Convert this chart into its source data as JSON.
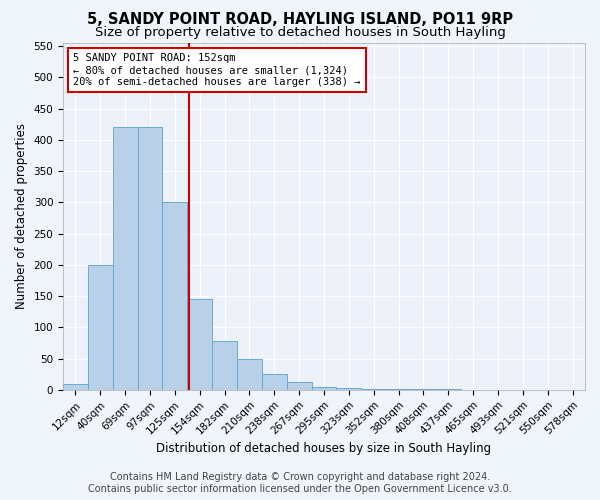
{
  "title": "5, SANDY POINT ROAD, HAYLING ISLAND, PO11 9RP",
  "subtitle": "Size of property relative to detached houses in South Hayling",
  "xlabel": "Distribution of detached houses by size in South Hayling",
  "ylabel": "Number of detached properties",
  "bin_labels": [
    "12sqm",
    "40sqm",
    "69sqm",
    "97sqm",
    "125sqm",
    "154sqm",
    "182sqm",
    "210sqm",
    "238sqm",
    "267sqm",
    "295sqm",
    "323sqm",
    "352sqm",
    "380sqm",
    "408sqm",
    "437sqm",
    "465sqm",
    "493sqm",
    "521sqm",
    "550sqm",
    "578sqm"
  ],
  "bin_values": [
    10,
    200,
    420,
    420,
    300,
    145,
    78,
    50,
    25,
    13,
    5,
    3,
    2,
    1,
    1,
    1,
    0,
    0,
    0,
    0,
    0
  ],
  "bar_color": "#b8d0e8",
  "bar_edge_color": "#6aaad4",
  "annotation_text": "5 SANDY POINT ROAD: 152sqm\n← 80% of detached houses are smaller (1,324)\n20% of semi-detached houses are larger (338) →",
  "annotation_box_color": "#ffffff",
  "annotation_box_edge_color": "#cc0000",
  "vline_color": "#cc0000",
  "vline_x": 4.55,
  "ylim": [
    0,
    555
  ],
  "yticks": [
    0,
    50,
    100,
    150,
    200,
    250,
    300,
    350,
    400,
    450,
    500,
    550
  ],
  "footer_line1": "Contains HM Land Registry data © Crown copyright and database right 2024.",
  "footer_line2": "Contains public sector information licensed under the Open Government Licence v3.0.",
  "bg_color": "#f0f4fb",
  "plot_bg_color": "#edf2fa",
  "grid_color": "#ffffff",
  "title_fontsize": 10.5,
  "subtitle_fontsize": 9.5,
  "axis_label_fontsize": 8.5,
  "tick_fontsize": 7.5,
  "footer_fontsize": 7.0,
  "ann_fontsize": 7.5
}
